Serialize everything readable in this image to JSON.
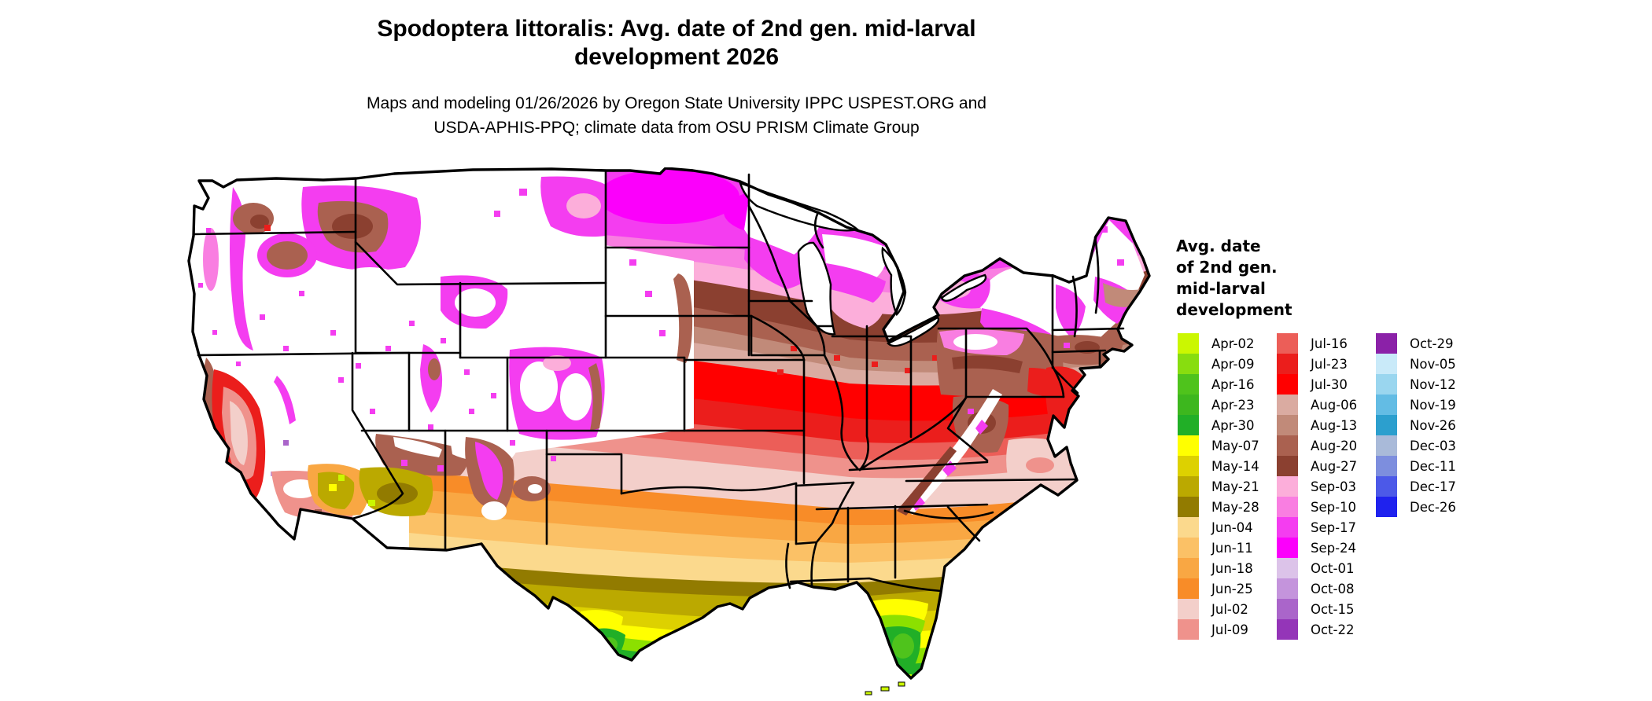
{
  "title": {
    "line1": "Spodoptera littoralis: Avg. date of 2nd gen. mid-larval",
    "line2": "development 2026"
  },
  "subtitle": {
    "line1": "Maps and modeling 01/26/2026 by Oregon State University IPPC USPEST.ORG and",
    "line2": "USDA-APHIS-PPQ; climate data from OSU PRISM Climate Group"
  },
  "legend": {
    "title_lines": [
      "Avg. date",
      "of 2nd gen.",
      "mid-larval",
      "development"
    ],
    "columns": [
      {
        "items": [
          {
            "label": "Apr-02",
            "color": "#cbf701"
          },
          {
            "label": "Apr-09",
            "color": "#88dd0f"
          },
          {
            "label": "Apr-16",
            "color": "#4fc31c"
          },
          {
            "label": "Apr-23",
            "color": "#3db71e"
          },
          {
            "label": "Apr-30",
            "color": "#21af27"
          },
          {
            "label": "May-07",
            "color": "#ffff00"
          },
          {
            "label": "May-14",
            "color": "#ddd100"
          },
          {
            "label": "May-21",
            "color": "#bba900"
          },
          {
            "label": "May-28",
            "color": "#927b00"
          },
          {
            "label": "Jun-04",
            "color": "#fbd98d"
          },
          {
            "label": "Jun-11",
            "color": "#fbc166"
          },
          {
            "label": "Jun-18",
            "color": "#f9a743"
          },
          {
            "label": "Jun-25",
            "color": "#f88c28"
          },
          {
            "label": "Jul-02",
            "color": "#f3cfca"
          },
          {
            "label": "Jul-09",
            "color": "#ef928c"
          }
        ]
      },
      {
        "items": [
          {
            "label": "Jul-16",
            "color": "#ec5e58"
          },
          {
            "label": "Jul-23",
            "color": "#eb1e1c"
          },
          {
            "label": "Jul-30",
            "color": "#ff0000"
          },
          {
            "label": "Aug-06",
            "color": "#daaba1"
          },
          {
            "label": "Aug-13",
            "color": "#c18a79"
          },
          {
            "label": "Aug-20",
            "color": "#aa6150"
          },
          {
            "label": "Aug-27",
            "color": "#8b4030"
          },
          {
            "label": "Sep-03",
            "color": "#fcaeda"
          },
          {
            "label": "Sep-10",
            "color": "#f97ee1"
          },
          {
            "label": "Sep-17",
            "color": "#f43df0"
          },
          {
            "label": "Sep-24",
            "color": "#fb00fb"
          },
          {
            "label": "Oct-01",
            "color": "#dcc3e9"
          },
          {
            "label": "Oct-08",
            "color": "#c494dc"
          },
          {
            "label": "Oct-15",
            "color": "#aa65ca"
          },
          {
            "label": "Oct-22",
            "color": "#9435b8"
          }
        ]
      },
      {
        "items": [
          {
            "label": "Oct-29",
            "color": "#8b21a8"
          },
          {
            "label": "Nov-05",
            "color": "#c9eaf9"
          },
          {
            "label": "Nov-12",
            "color": "#9ad6ef"
          },
          {
            "label": "Nov-19",
            "color": "#63bce4"
          },
          {
            "label": "Nov-26",
            "color": "#2c9fce"
          },
          {
            "label": "Dec-03",
            "color": "#a9bad9"
          },
          {
            "label": "Dec-11",
            "color": "#7d8ede"
          },
          {
            "label": "Dec-17",
            "color": "#4c59e8"
          },
          {
            "label": "Dec-26",
            "color": "#1f22ee"
          }
        ]
      }
    ]
  },
  "colors": {
    "background": "#ffffff",
    "map_border": "#000000",
    "map_nodata": "#ffffff"
  }
}
